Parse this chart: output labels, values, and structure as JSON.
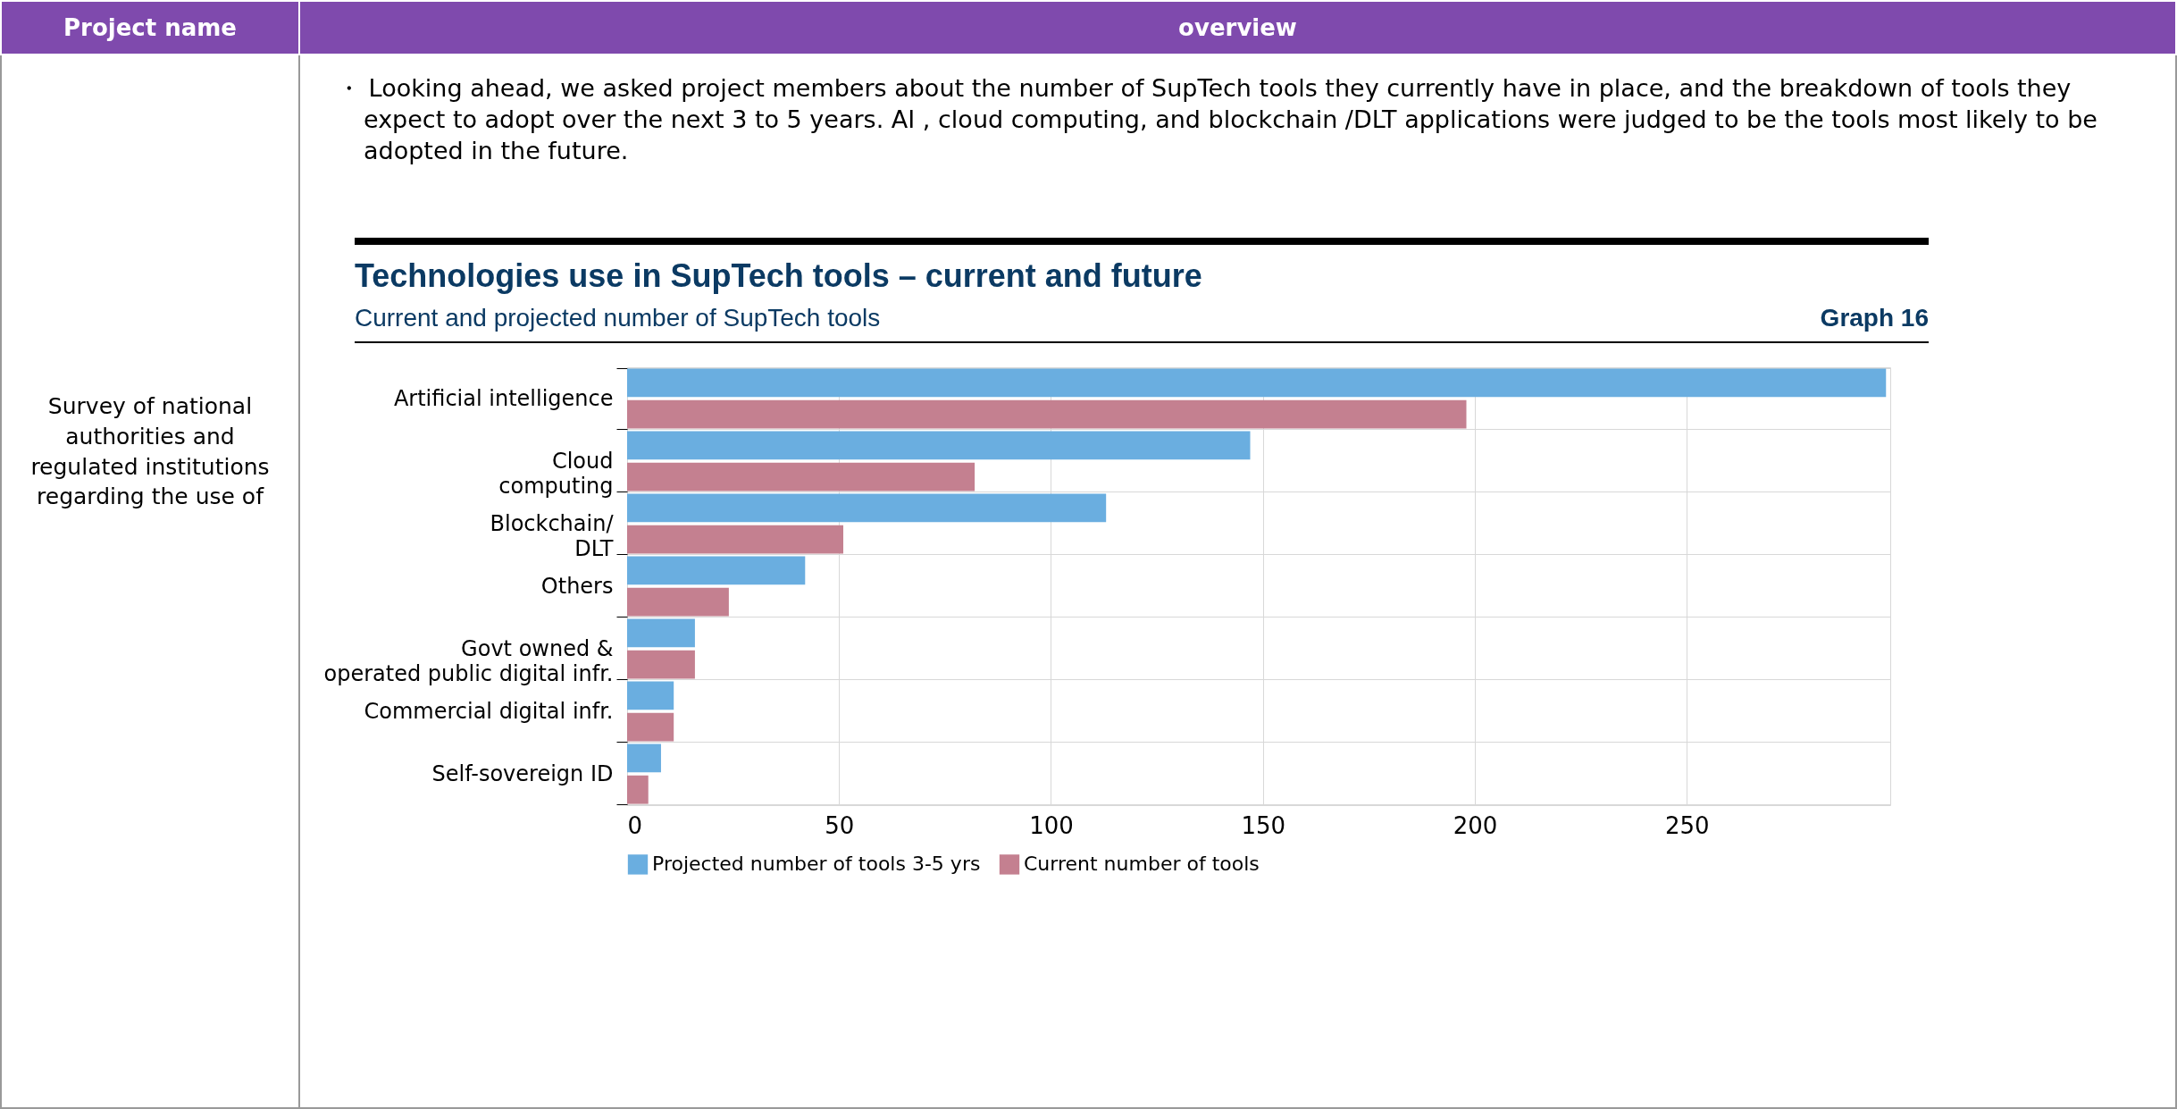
{
  "chart_data": {
    "type": "bar",
    "orientation": "horizontal",
    "title": "Technologies use in SupTech tools – current and future",
    "subtitle": "Current and projected number of SupTech tools",
    "annotations": [
      "Project name",
      "overview",
      "・ Looking ahead, we asked project members about the number of SupTech tools they currently have in place, and the breakdown of tools they expect to adopt over the next 3 to 5 years. AI , cloud computing, and blockchain /DLT applications were judged to be the tools most likely to be adopted in the future.",
      "Survey of national authorities and regulated institutions regarding the use of",
      "Graph 16"
    ],
    "categories": [
      "Artificial intelligence",
      "Cloud\ncomputing",
      "Blockchain/\nDLT",
      "Others",
      "Govt owned &\noperated public digital infr.",
      "Commercial digital infr.",
      "Self-sovereign ID"
    ],
    "series": [
      {
        "name": "Projected number of tools 3-5 yrs",
        "color": "#6aaee0",
        "values": [
          297,
          147,
          113,
          42,
          16,
          11,
          8
        ]
      },
      {
        "name": "Current number of tools",
        "color": "#c48090",
        "values": [
          198,
          82,
          51,
          24,
          16,
          11,
          5
        ]
      }
    ],
    "xlim": [
      0,
      298
    ],
    "xticks": [
      0,
      50,
      100,
      150,
      200,
      250
    ],
    "grid": true,
    "legend": "bottom"
  }
}
